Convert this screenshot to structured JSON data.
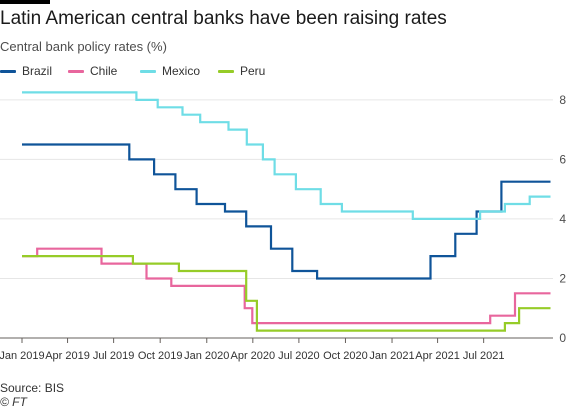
{
  "header": {
    "title": "Latin American central banks have been raising rates",
    "subtitle": "Central bank policy rates (%)"
  },
  "footer": {
    "source": "Source: BIS",
    "credit": "© FT"
  },
  "chart_data": {
    "type": "line",
    "step": true,
    "xlim": [
      "2019-01-01",
      "2021-11-15"
    ],
    "ylim": [
      0,
      8.6
    ],
    "yticks": [
      0,
      2,
      4,
      6,
      8
    ],
    "ytick_labels": [
      "0",
      "2",
      "4",
      "6",
      "8"
    ],
    "x_ticks": [
      {
        "date": "2019-01-01",
        "label": "Jan 2019"
      },
      {
        "date": "2019-04-01",
        "label": "Apr 2019"
      },
      {
        "date": "2019-07-01",
        "label": "Jul 2019"
      },
      {
        "date": "2019-10-01",
        "label": "Oct 2019"
      },
      {
        "date": "2020-01-01",
        "label": "Jan 2020"
      },
      {
        "date": "2020-04-01",
        "label": "Apr 2020"
      },
      {
        "date": "2020-07-01",
        "label": "Jul 2020"
      },
      {
        "date": "2020-10-01",
        "label": "Oct 2020"
      },
      {
        "date": "2021-01-01",
        "label": "Jan 2021"
      },
      {
        "date": "2021-04-01",
        "label": "Apr 2021"
      },
      {
        "date": "2021-07-01",
        "label": "Jul 2021"
      }
    ],
    "grid": "horizontal",
    "legend_position": "top-left",
    "series": [
      {
        "name": "Brazil",
        "color": "#0f5499",
        "points": [
          [
            "2019-01-01",
            6.5
          ],
          [
            "2019-08-01",
            6.0
          ],
          [
            "2019-09-19",
            5.5
          ],
          [
            "2019-10-31",
            5.0
          ],
          [
            "2019-12-12",
            4.5
          ],
          [
            "2020-02-06",
            4.25
          ],
          [
            "2020-03-19",
            3.75
          ],
          [
            "2020-05-07",
            3.0
          ],
          [
            "2020-06-18",
            2.25
          ],
          [
            "2020-08-06",
            2.0
          ],
          [
            "2021-03-18",
            2.75
          ],
          [
            "2021-05-06",
            3.5
          ],
          [
            "2021-06-17",
            4.25
          ],
          [
            "2021-08-05",
            5.25
          ],
          [
            "2021-11-10",
            5.25
          ]
        ]
      },
      {
        "name": "Chile",
        "color": "#e8669d",
        "points": [
          [
            "2019-01-01",
            2.75
          ],
          [
            "2019-01-31",
            3.0
          ],
          [
            "2019-06-07",
            2.5
          ],
          [
            "2019-09-04",
            2.0
          ],
          [
            "2019-10-23",
            1.75
          ],
          [
            "2020-03-16",
            1.0
          ],
          [
            "2020-03-31",
            0.5
          ],
          [
            "2021-07-14",
            0.75
          ],
          [
            "2021-09-01",
            1.5
          ],
          [
            "2021-11-10",
            1.5
          ]
        ]
      },
      {
        "name": "Mexico",
        "color": "#6fdde6",
        "points": [
          [
            "2019-01-01",
            8.25
          ],
          [
            "2019-08-15",
            8.0
          ],
          [
            "2019-09-26",
            7.75
          ],
          [
            "2019-11-14",
            7.5
          ],
          [
            "2019-12-19",
            7.25
          ],
          [
            "2020-02-13",
            7.0
          ],
          [
            "2020-03-20",
            6.5
          ],
          [
            "2020-04-21",
            6.0
          ],
          [
            "2020-05-14",
            5.5
          ],
          [
            "2020-06-25",
            5.0
          ],
          [
            "2020-08-13",
            4.5
          ],
          [
            "2020-09-24",
            4.25
          ],
          [
            "2021-02-11",
            4.0
          ],
          [
            "2021-06-24",
            4.25
          ],
          [
            "2021-08-12",
            4.5
          ],
          [
            "2021-09-30",
            4.75
          ],
          [
            "2021-11-10",
            4.75
          ]
        ]
      },
      {
        "name": "Peru",
        "color": "#96cc28",
        "points": [
          [
            "2019-01-01",
            2.75
          ],
          [
            "2019-08-08",
            2.5
          ],
          [
            "2019-11-07",
            2.25
          ],
          [
            "2020-03-19",
            1.25
          ],
          [
            "2020-04-09",
            0.25
          ],
          [
            "2021-08-12",
            0.5
          ],
          [
            "2021-09-09",
            1.0
          ],
          [
            "2021-11-10",
            1.0
          ]
        ]
      }
    ]
  }
}
